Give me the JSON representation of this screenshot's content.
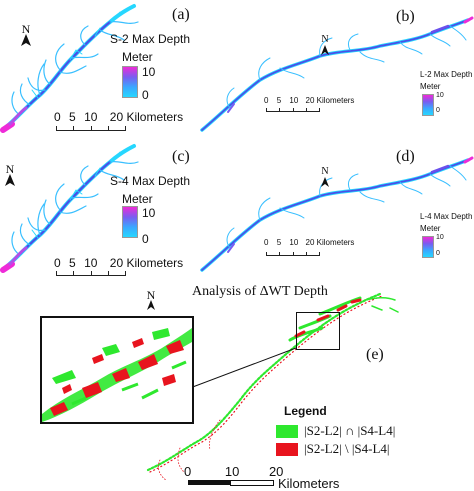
{
  "panels": [
    {
      "id": "a",
      "label": "(a)",
      "title": "S-2 Max Depth",
      "unit": "Meter",
      "cbar_max": "10",
      "cbar_min": "0",
      "scale_ticks": [
        "0",
        "5",
        "10",
        "20 Kilometers"
      ]
    },
    {
      "id": "b",
      "label": "(b)",
      "title": "L-2 Max Depth",
      "unit": "Meter",
      "cbar_max": "10",
      "cbar_min": "0",
      "scale_ticks": [
        "0",
        "5",
        "10",
        "20 Kilometers"
      ]
    },
    {
      "id": "c",
      "label": "(c)",
      "title": "S-4 Max Depth",
      "unit": "Meter",
      "cbar_max": "10",
      "cbar_min": "0",
      "scale_ticks": [
        "0",
        "5",
        "10",
        "20 Kilometers"
      ]
    },
    {
      "id": "d",
      "label": "(d)",
      "title": "L-4 Max Depth",
      "unit": "Meter",
      "cbar_max": "10",
      "cbar_min": "0",
      "scale_ticks": [
        "0",
        "5",
        "10",
        "20 Kilometers"
      ]
    }
  ],
  "panel_e": {
    "label": "(e)",
    "title": "Analysis of ΔWT Depth",
    "legend_title": "Legend",
    "legend_items": [
      {
        "label": "|S2-L2| ∩ |S4-L4|",
        "color": "#2ee82e"
      },
      {
        "label": "|S2-L2| \\ |S4-L4|",
        "color": "#e8141e"
      }
    ],
    "scale_ticks": [
      "0",
      "10",
      "20"
    ],
    "scale_unit": "Kilometers"
  },
  "north_label": "N",
  "colors": {
    "depth_high": "#ee2bd8",
    "depth_mid": "#7a5cf0",
    "depth_low": "#26d7ff",
    "channel": "#4a4fe8"
  }
}
